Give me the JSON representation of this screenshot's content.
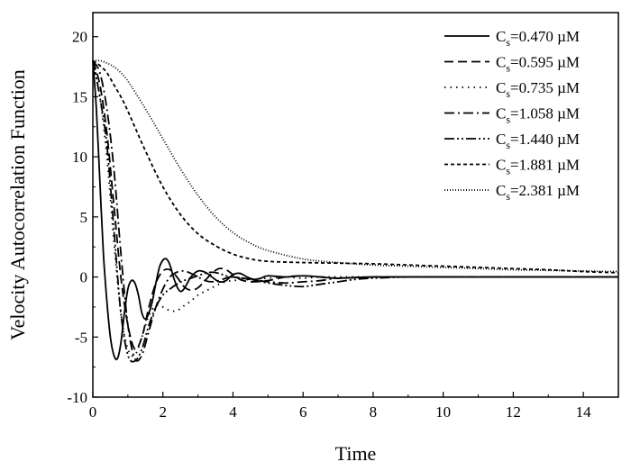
{
  "chart_data": {
    "type": "line",
    "xlabel": "Time",
    "ylabel": "Velocity Autocorrelation Function",
    "xlim": [
      0,
      15
    ],
    "ylim": [
      -10,
      22
    ],
    "xticks": [
      0,
      2,
      4,
      6,
      8,
      10,
      12,
      14
    ],
    "yticks": [
      -10,
      -5,
      0,
      5,
      10,
      15,
      20
    ],
    "grid": false,
    "legend_position": "top-right",
    "series": [
      {
        "name": "Cs=0.470 µM",
        "label_main": "C",
        "label_sub": "s",
        "label_rest": "=0.470 µM",
        "dash": "solid",
        "x": [
          0,
          0.1,
          0.2,
          0.3,
          0.4,
          0.5,
          0.6,
          0.7,
          0.8,
          0.9,
          1.0,
          1.1,
          1.2,
          1.3,
          1.4,
          1.5,
          1.6,
          1.7,
          1.8,
          1.9,
          2.0,
          2.1,
          2.2,
          2.3,
          2.4,
          2.5,
          2.6,
          2.7,
          2.8,
          3.0,
          3.2,
          3.4,
          3.6,
          3.8,
          4.0,
          4.2,
          4.4,
          4.6,
          4.8,
          5.0,
          5.5,
          6.0,
          6.5,
          7.0,
          8.0,
          9.0,
          10.0,
          12.0,
          15.0
        ],
        "y": [
          18,
          14,
          8,
          2,
          -2,
          -5,
          -6.5,
          -6.8,
          -5.5,
          -3,
          -1,
          -0.3,
          -0.5,
          -1.5,
          -3,
          -3.5,
          -3,
          -2,
          -0.5,
          0.8,
          1.4,
          1.5,
          1.0,
          0,
          -0.8,
          -1.2,
          -1.0,
          -0.5,
          0,
          0.5,
          0.4,
          0,
          -0.4,
          -0.3,
          0.2,
          0.3,
          0,
          -0.2,
          -0.1,
          0.1,
          0,
          0.1,
          0,
          -0.1,
          0,
          0,
          0,
          0,
          0
        ]
      },
      {
        "name": "Cs=0.595 µM",
        "label_main": "C",
        "label_sub": "s",
        "label_rest": "=0.595 µM",
        "dash": "dash",
        "x": [
          0,
          0.2,
          0.4,
          0.6,
          0.8,
          1.0,
          1.2,
          1.4,
          1.6,
          1.8,
          2.0,
          2.2,
          2.4,
          2.6,
          2.8,
          3.0,
          3.2,
          3.4,
          3.6,
          3.8,
          4.0,
          4.2,
          4.5,
          5.0,
          5.5,
          6.0,
          6.5,
          7.0,
          8.0,
          9.0,
          10.0,
          12.0,
          15.0
        ],
        "y": [
          18,
          16,
          12,
          6,
          0,
          -4,
          -6,
          -5,
          -2.5,
          -0.5,
          0.5,
          0.6,
          0,
          -0.8,
          -1.1,
          -0.9,
          -0.3,
          0.3,
          0.7,
          0.6,
          0.2,
          -0.2,
          -0.4,
          -0.3,
          0,
          0.1,
          0,
          -0.1,
          0,
          0,
          0,
          0,
          0
        ]
      },
      {
        "name": "Cs=0.735 µM",
        "label_main": "C",
        "label_sub": "s",
        "label_rest": "=0.735 µM",
        "dash": "dot",
        "x": [
          0,
          0.2,
          0.4,
          0.6,
          0.8,
          1.0,
          1.2,
          1.4,
          1.6,
          1.8,
          2.0,
          2.2,
          2.4,
          2.6,
          2.8,
          3.0,
          3.2,
          3.4,
          3.6,
          3.8,
          4.0,
          4.5,
          5.0,
          5.5,
          6.0,
          6.5,
          7.0,
          8.0,
          9.0,
          10.0,
          12.0,
          15.0
        ],
        "y": [
          18,
          15,
          10,
          3,
          -3,
          -6,
          -6.5,
          -5,
          -3.2,
          -2.4,
          -2.5,
          -2.8,
          -2.8,
          -2.4,
          -2.0,
          -1.5,
          -1.2,
          -0.9,
          -0.6,
          -0.4,
          -0.3,
          -0.2,
          -0.1,
          0,
          -0.1,
          0,
          0,
          0,
          0,
          0,
          0,
          0
        ]
      },
      {
        "name": "Cs=1.058 µM",
        "label_main": "C",
        "label_sub": "s",
        "label_rest": "=1.058 µM",
        "dash": "dashdot",
        "x": [
          0,
          0.2,
          0.4,
          0.6,
          0.8,
          1.0,
          1.2,
          1.4,
          1.6,
          1.8,
          2.0,
          2.2,
          2.4,
          2.6,
          2.8,
          3.0,
          3.2,
          3.4,
          3.6,
          3.8,
          4.0,
          4.5,
          5.0,
          5.5,
          6.0,
          6.5,
          7.0,
          8.0,
          9.0,
          10.0,
          12.0,
          15.0
        ],
        "y": [
          18,
          17,
          14,
          9,
          2,
          -4,
          -6.8,
          -6.5,
          -4.5,
          -2.5,
          -1,
          0,
          0.4,
          0.5,
          0.3,
          0,
          -0.3,
          -0.4,
          -0.3,
          -0.1,
          0,
          -0.2,
          -0.4,
          -0.5,
          -0.4,
          -0.3,
          -0.1,
          0,
          0,
          0,
          0,
          0
        ]
      },
      {
        "name": "Cs=1.440 µM",
        "label_main": "C",
        "label_sub": "s",
        "label_rest": "=1.440 µM",
        "dash": "dashdotdot",
        "x": [
          0,
          0.2,
          0.4,
          0.6,
          0.8,
          1.0,
          1.2,
          1.4,
          1.6,
          1.8,
          2.0,
          2.2,
          2.4,
          2.6,
          2.8,
          3.0,
          3.2,
          3.4,
          3.6,
          3.8,
          4.0,
          4.5,
          5.0,
          5.5,
          6.0,
          6.5,
          7.0,
          7.5,
          8.0,
          9.0,
          10.0,
          12.0,
          15.0
        ],
        "y": [
          18,
          15,
          11,
          4,
          -3,
          -6.5,
          -7.0,
          -6,
          -4,
          -2.5,
          -1.5,
          -1.0,
          -0.6,
          -0.3,
          -0.1,
          0.1,
          0.3,
          0.4,
          0.3,
          0.1,
          0,
          -0.2,
          -0.5,
          -0.7,
          -0.8,
          -0.6,
          -0.4,
          -0.2,
          -0.1,
          0,
          0,
          0,
          0
        ]
      },
      {
        "name": "Cs=1.881 µM",
        "label_main": "C",
        "label_sub": "s",
        "label_rest": "=1.881 µM",
        "dash": "shortdash",
        "x": [
          0,
          0.2,
          0.4,
          0.6,
          0.8,
          1.0,
          1.5,
          2.0,
          2.5,
          3.0,
          3.5,
          4.0,
          4.5,
          5.0,
          6.0,
          7.0,
          8.0,
          9.0,
          10.0,
          11.0,
          12.0,
          13.0,
          14.0,
          15.0
        ],
        "y": [
          18,
          17.6,
          17,
          16,
          15,
          13.8,
          10.5,
          7.5,
          5.2,
          3.6,
          2.6,
          1.9,
          1.5,
          1.3,
          1.2,
          1.15,
          1.1,
          1.0,
          0.9,
          0.8,
          0.7,
          0.6,
          0.45,
          0.35
        ]
      },
      {
        "name": "Cs=2.381 µM",
        "label_main": "C",
        "label_sub": "s",
        "label_rest": "=2.381 µM",
        "dash": "finedot",
        "x": [
          0,
          0.2,
          0.4,
          0.6,
          0.8,
          1.0,
          1.5,
          2.0,
          2.5,
          3.0,
          3.5,
          4.0,
          4.5,
          5.0,
          6.0,
          7.0,
          8.0,
          9.0,
          10.0,
          11.0,
          12.0,
          13.0,
          14.0,
          15.0
        ],
        "y": [
          18,
          18,
          17.8,
          17.5,
          17,
          16.3,
          14.0,
          11.5,
          9.0,
          6.8,
          5.0,
          3.7,
          2.8,
          2.2,
          1.5,
          1.2,
          1.0,
          0.9,
          0.8,
          0.7,
          0.6,
          0.55,
          0.5,
          0.45
        ]
      }
    ]
  }
}
